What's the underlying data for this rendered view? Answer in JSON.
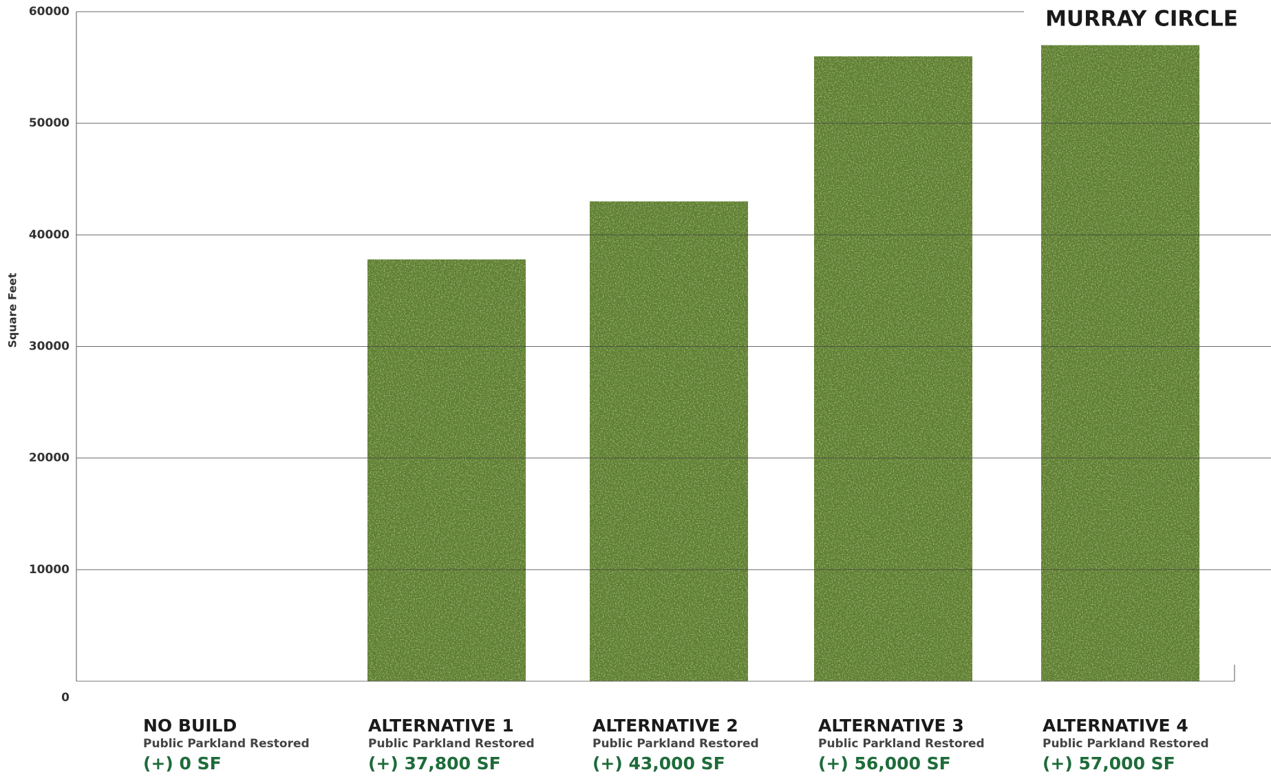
{
  "chart_data": {
    "type": "bar",
    "title": "MURRAY CIRCLE",
    "y_label": "Square Feet",
    "categories": [
      "NO BUILD",
      "ALTERNATIVE 1",
      "ALTERNATIVE 2",
      "ALTERNATIVE 3",
      "ALTERNATIVE 4"
    ],
    "category_subtitles": [
      "Public Parkland Restored",
      "Public Parkland Restored",
      "Public Parkland Restored",
      "Public Parkland Restored",
      "Public Parkland Restored"
    ],
    "values": [
      0,
      37800,
      43000,
      56000,
      57000
    ],
    "value_labels": [
      "(+) 0 SF",
      "(+) 37,800 SF",
      "(+) 43,000 SF",
      "(+) 56,000 SF",
      "(+) 57,000 SF"
    ],
    "color": "#5b7d2f",
    "label_color": "#1e6b3a",
    "ylim": [
      0,
      60000
    ],
    "yticks": [
      0,
      10000,
      20000,
      30000,
      40000,
      50000,
      60000
    ],
    "grid": true
  }
}
